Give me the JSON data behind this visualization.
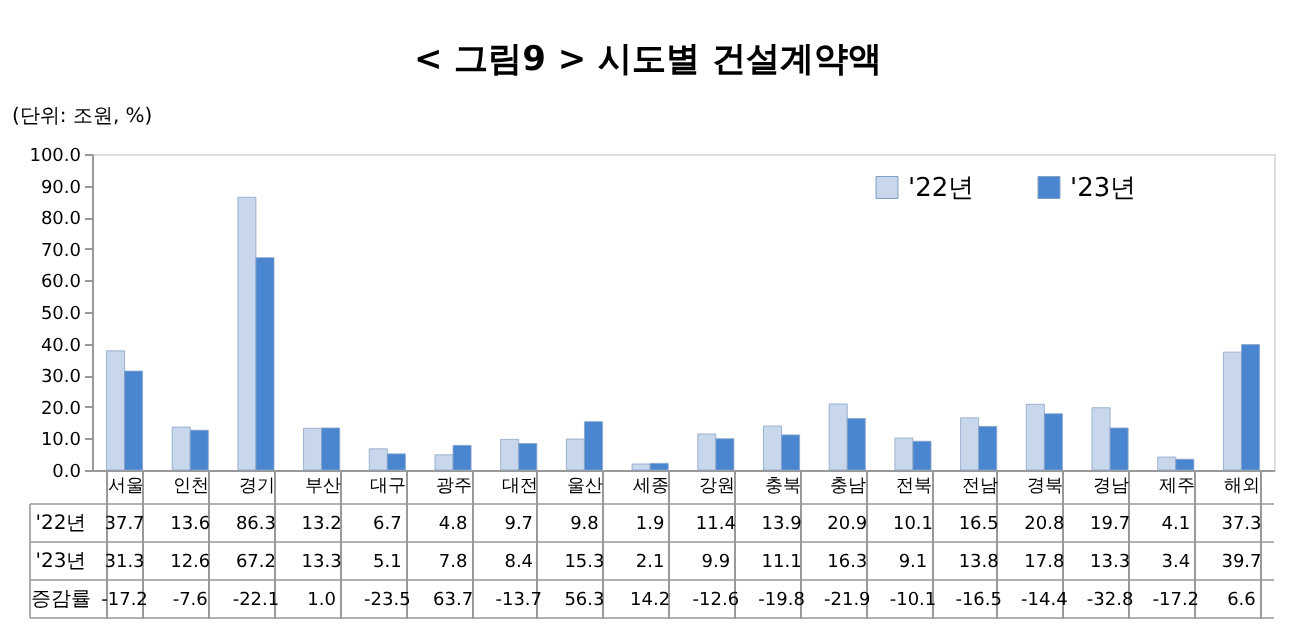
{
  "chart_data": {
    "type": "bar",
    "title": "< 그림9 > 시도별 건설계약액",
    "ylabel": "(단위: 조원, %)",
    "categories": [
      "서울",
      "인천",
      "경기",
      "부산",
      "대구",
      "광주",
      "대전",
      "울산",
      "세종",
      "강원",
      "충북",
      "충남",
      "전북",
      "전남",
      "경북",
      "경남",
      "제주",
      "해외"
    ],
    "series": [
      {
        "name": "'22년",
        "color": "#c8d7ec",
        "values": [
          37.7,
          13.6,
          86.3,
          13.2,
          6.7,
          4.8,
          9.7,
          9.8,
          1.9,
          11.4,
          13.9,
          20.9,
          10.1,
          16.5,
          20.8,
          19.7,
          4.1,
          37.3
        ]
      },
      {
        "name": "'23년",
        "color": "#4a86d0",
        "values": [
          31.3,
          12.6,
          67.2,
          13.3,
          5.1,
          7.8,
          8.4,
          15.3,
          2.1,
          9.9,
          11.1,
          16.3,
          9.1,
          13.8,
          17.8,
          13.3,
          3.4,
          39.7
        ]
      }
    ],
    "ylim": [
      0,
      100
    ],
    "yticks": [
      {
        "value": 0,
        "label": "0.0"
      },
      {
        "value": 10,
        "label": "10.0"
      },
      {
        "value": 20,
        "label": "20.0"
      },
      {
        "value": 30,
        "label": "30.0"
      },
      {
        "value": 40,
        "label": "40.0"
      },
      {
        "value": 50,
        "label": "50.0"
      },
      {
        "value": 60,
        "label": "60.0"
      },
      {
        "value": 70,
        "label": "70.0"
      },
      {
        "value": 80,
        "label": "80.0"
      },
      {
        "value": 90,
        "label": "90.0"
      },
      {
        "value": 100,
        "label": "100.0"
      }
    ],
    "data_labels": true,
    "annotations": [
      "증감률",
      "-17.2",
      "-7.6",
      "-22.1",
      "1.0",
      "-23.5",
      "63.7",
      "-13.7",
      "56.3",
      "14.2",
      "-12.6",
      "-19.8",
      "-21.9",
      "-10.1",
      "-16.5",
      "-14.4",
      "-32.8",
      "-17.2",
      "6.6"
    ],
    "legend": "top right",
    "grid": false
  }
}
